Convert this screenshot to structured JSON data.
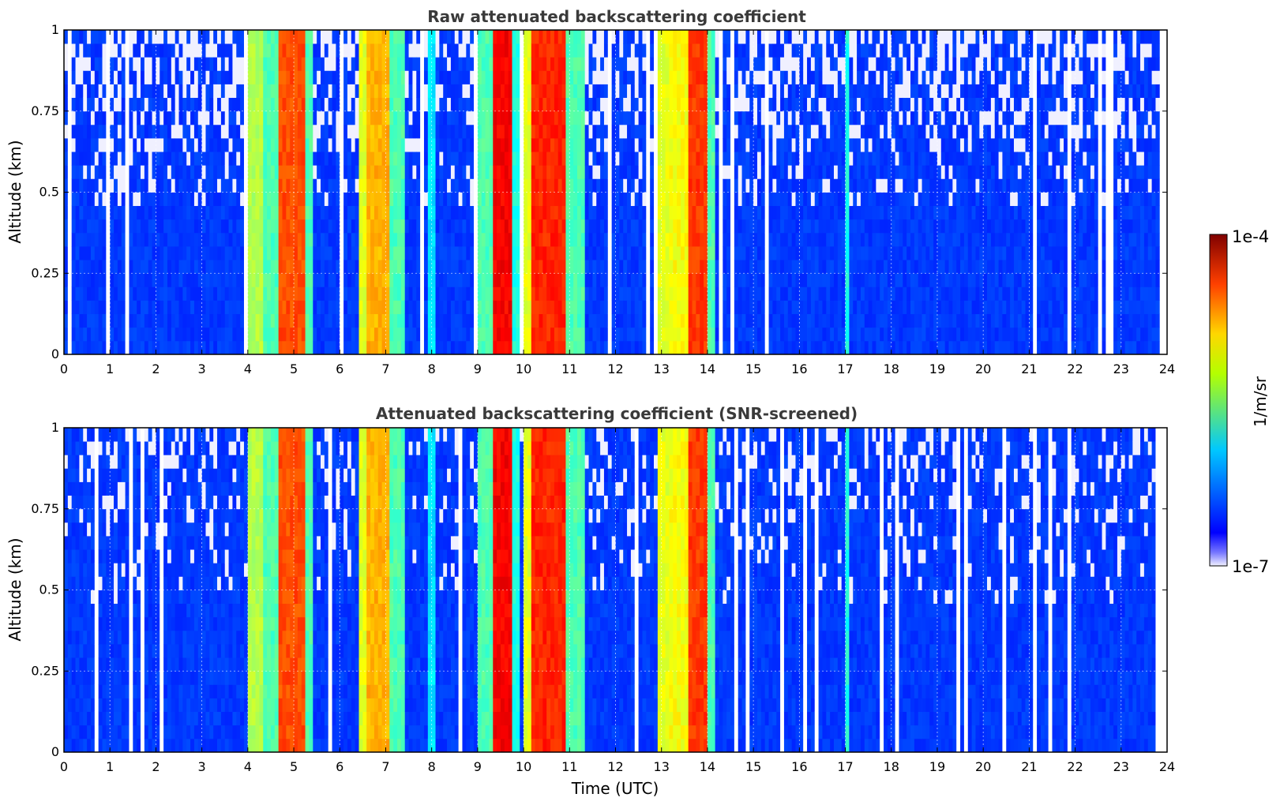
{
  "chart_data": [
    {
      "type": "heatmap",
      "title": "Raw attenuated backscattering coefficient",
      "xlabel": "",
      "ylabel": "Altitude (km)",
      "xlim": [
        0,
        24
      ],
      "ylim": [
        0,
        1
      ],
      "x_ticks": [
        "0",
        "1",
        "2",
        "3",
        "4",
        "5",
        "6",
        "7",
        "8",
        "9",
        "10",
        "11",
        "12",
        "13",
        "14",
        "15",
        "16",
        "17",
        "18",
        "19",
        "20",
        "21",
        "22",
        "23",
        "24"
      ],
      "y_ticks": [
        "0",
        "0.25",
        "0.5",
        "0.75",
        "1"
      ],
      "grid": true,
      "background_level": 0.18,
      "data_end_hour": 23.8,
      "events": [
        {
          "start": 4.0,
          "end": 4.35,
          "level": 0.55
        },
        {
          "start": 4.35,
          "end": 4.65,
          "level": 0.45
        },
        {
          "start": 4.65,
          "end": 5.25,
          "level": 0.8
        },
        {
          "start": 5.25,
          "end": 5.45,
          "level": 0.45
        },
        {
          "start": 6.4,
          "end": 6.6,
          "level": 0.6
        },
        {
          "start": 6.6,
          "end": 7.1,
          "level": 0.7
        },
        {
          "start": 7.1,
          "end": 7.4,
          "level": 0.45
        },
        {
          "start": 7.9,
          "end": 8.05,
          "level": 0.35
        },
        {
          "start": 9.0,
          "end": 9.3,
          "level": 0.45
        },
        {
          "start": 9.3,
          "end": 9.75,
          "level": 0.88
        },
        {
          "start": 9.75,
          "end": 9.9,
          "level": 0.4
        },
        {
          "start": 10.0,
          "end": 10.15,
          "level": 0.6
        },
        {
          "start": 10.15,
          "end": 10.9,
          "level": 0.84
        },
        {
          "start": 10.9,
          "end": 11.3,
          "level": 0.45
        },
        {
          "start": 12.95,
          "end": 13.15,
          "level": 0.6
        },
        {
          "start": 13.15,
          "end": 13.6,
          "level": 0.62
        },
        {
          "start": 13.6,
          "end": 14.0,
          "level": 0.82
        },
        {
          "start": 14.0,
          "end": 14.15,
          "level": 0.45
        },
        {
          "start": 17.0,
          "end": 17.1,
          "level": 0.4
        }
      ]
    },
    {
      "type": "heatmap",
      "title": "Attenuated backscattering coefficient (SNR-screened)",
      "xlabel": "Time (UTC)",
      "ylabel": "Altitude (km)",
      "xlim": [
        0,
        24
      ],
      "ylim": [
        0,
        1
      ],
      "x_ticks": [
        "0",
        "1",
        "2",
        "3",
        "4",
        "5",
        "6",
        "7",
        "8",
        "9",
        "10",
        "11",
        "12",
        "13",
        "14",
        "15",
        "16",
        "17",
        "18",
        "19",
        "20",
        "21",
        "22",
        "23",
        "24"
      ],
      "y_ticks": [
        "0",
        "0.25",
        "0.5",
        "0.75",
        "1"
      ],
      "grid": true,
      "background_level": 0.18,
      "data_end_hour": 23.8,
      "events": [
        {
          "start": 4.0,
          "end": 4.35,
          "level": 0.55
        },
        {
          "start": 4.35,
          "end": 4.65,
          "level": 0.45
        },
        {
          "start": 4.65,
          "end": 5.25,
          "level": 0.8
        },
        {
          "start": 5.25,
          "end": 5.45,
          "level": 0.45
        },
        {
          "start": 6.4,
          "end": 6.6,
          "level": 0.6
        },
        {
          "start": 6.6,
          "end": 7.1,
          "level": 0.7
        },
        {
          "start": 7.1,
          "end": 7.4,
          "level": 0.45
        },
        {
          "start": 7.9,
          "end": 8.05,
          "level": 0.35
        },
        {
          "start": 9.0,
          "end": 9.3,
          "level": 0.45
        },
        {
          "start": 9.3,
          "end": 9.75,
          "level": 0.88
        },
        {
          "start": 9.75,
          "end": 9.9,
          "level": 0.4
        },
        {
          "start": 10.0,
          "end": 10.15,
          "level": 0.6
        },
        {
          "start": 10.15,
          "end": 10.9,
          "level": 0.84
        },
        {
          "start": 10.9,
          "end": 11.3,
          "level": 0.45
        },
        {
          "start": 12.95,
          "end": 13.15,
          "level": 0.6
        },
        {
          "start": 13.15,
          "end": 13.6,
          "level": 0.62
        },
        {
          "start": 13.6,
          "end": 14.0,
          "level": 0.82
        },
        {
          "start": 14.0,
          "end": 14.15,
          "level": 0.45
        },
        {
          "start": 17.0,
          "end": 17.1,
          "level": 0.4
        }
      ]
    }
  ],
  "colorbar": {
    "label": "1/m/sr",
    "min_label": "1e-7",
    "max_label": "1e-4",
    "colormap": "jet",
    "colors": [
      "#f0f0ff",
      "#0000ff",
      "#00c8ff",
      "#b4ff00",
      "#ffd700",
      "#ff4000",
      "#800000"
    ]
  }
}
